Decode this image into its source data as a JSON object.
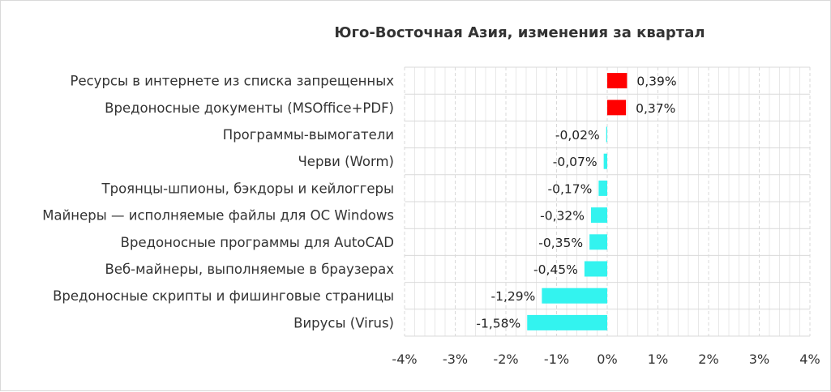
{
  "chart_data": {
    "type": "bar",
    "orientation": "horizontal",
    "title": "Юго-Восточная Азия, изменения за квартал",
    "categories": [
      "Ресурсы в интернете из списка запрещенных",
      "Вредоносные документы (MSOffice+PDF)",
      "Программы-вымогатели",
      "Черви (Worm)",
      "Троянцы-шпионы, бэкдоры и кейлоггеры",
      "Майнеры — исполняемые файлы для ОС Windows",
      "Вредоносные программы для AutoCAD",
      "Веб-майнеры, выполняемые в браузерах",
      "Вредоносные скрипты и фишинговые страницы",
      "Вирусы (Virus)"
    ],
    "values": [
      0.39,
      0.37,
      -0.02,
      -0.07,
      -0.17,
      -0.32,
      -0.35,
      -0.45,
      -1.29,
      -1.58
    ],
    "value_labels": [
      "0,39%",
      "0,37%",
      "-0,02%",
      "-0,07%",
      "-0,17%",
      "-0,32%",
      "-0,35%",
      "-0,45%",
      "-1,29%",
      "-1,58%"
    ],
    "xlim": [
      -4,
      4
    ],
    "xticks": [
      -4,
      -3,
      -2,
      -1,
      0,
      1,
      2,
      3,
      4
    ],
    "xtick_labels": [
      "-4%",
      "-3%",
      "-2%",
      "-1%",
      "0%",
      "1%",
      "2%",
      "3%",
      "4%"
    ],
    "grid": true,
    "legend": "none",
    "colors": {
      "positive": "#ff0000",
      "negative": "#33f3ef",
      "grid": "#d9d9d9",
      "frame": "#d9d9d9"
    }
  }
}
